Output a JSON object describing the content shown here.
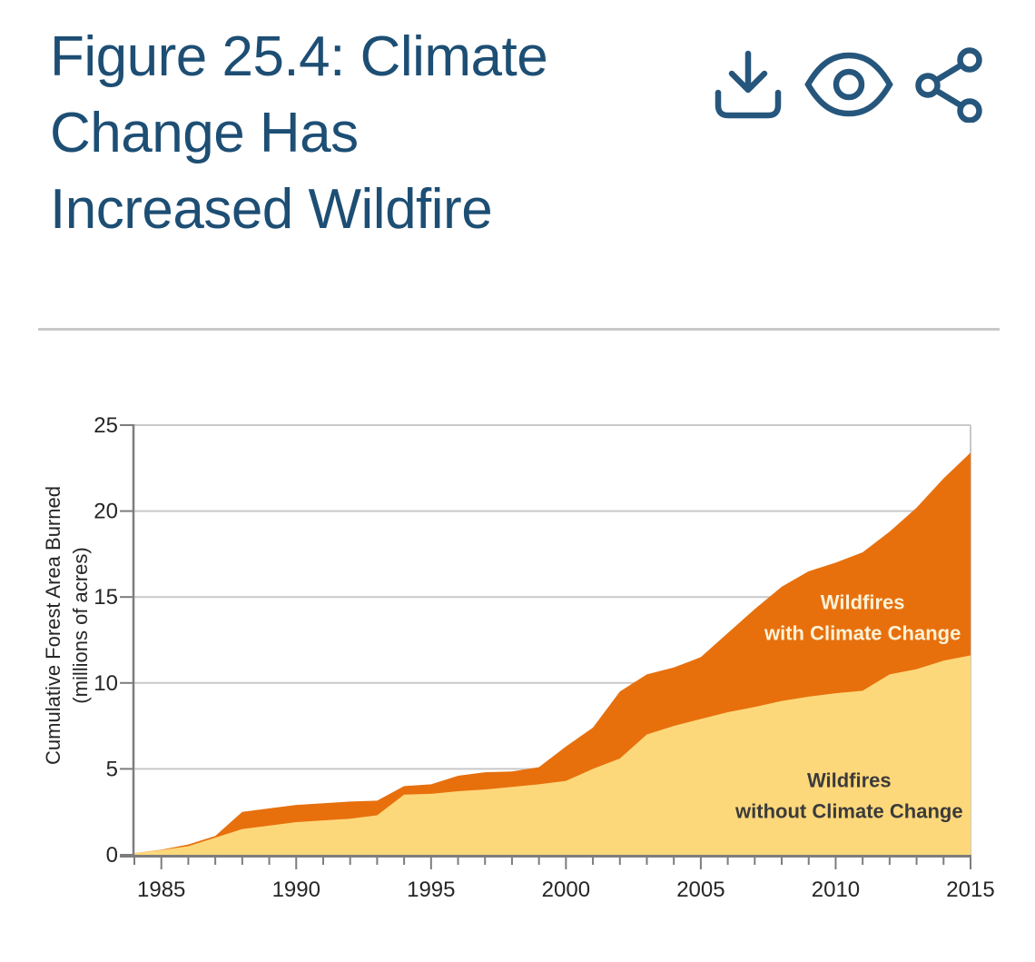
{
  "header": {
    "title": "Figure 25.4: Climate Change Has Increased Wildfire",
    "title_lines": [
      "Figure 25.4: Climate",
      "Change Has",
      "Increased Wildfire"
    ],
    "actions": [
      {
        "label": "Download",
        "icon": "download-icon"
      },
      {
        "label": "View",
        "icon": "eye-icon"
      },
      {
        "label": "Share",
        "icon": "share-icon"
      }
    ]
  },
  "colors": {
    "title_text": "#1d4e74",
    "icon_stroke": "#26567c",
    "divider": "#c9c9c9",
    "axis": "#7d7d7d",
    "grid": "#c9c9c9",
    "tick_text": "#262626",
    "with_climate_change_fill": "#e7700d",
    "without_climate_change_fill": "#fdd87b",
    "with_label_text": "#fbf2d7",
    "without_label_text": "#3b3b3b"
  },
  "chart_data": {
    "type": "area",
    "title": "",
    "xlabel": "",
    "ylabel": "Cumulative Forest Area Burned (millions of acres)",
    "ylabel_lines": [
      "Cumulative Forest Area Burned",
      "(millions of acres)"
    ],
    "xlim": [
      1984,
      2015
    ],
    "ylim": [
      0,
      25
    ],
    "yticks": [
      0,
      5,
      10,
      15,
      20,
      25
    ],
    "ytick_labels": [
      "0",
      "5",
      "10",
      "15",
      "20",
      "25"
    ],
    "xticks_major": [
      1985,
      1990,
      1995,
      2000,
      2005,
      2010,
      2015
    ],
    "xtick_labels": [
      "1985",
      "1990",
      "1995",
      "2000",
      "2005",
      "2010",
      "2015"
    ],
    "grid": "horizontal",
    "legend_position": "in-plot annotations",
    "x": [
      1984,
      1985,
      1986,
      1987,
      1988,
      1989,
      1990,
      1991,
      1992,
      1993,
      1994,
      1995,
      1996,
      1997,
      1998,
      1999,
      2000,
      2001,
      2002,
      2003,
      2004,
      2005,
      2006,
      2007,
      2008,
      2009,
      2010,
      2011,
      2012,
      2013,
      2014,
      2015
    ],
    "series": [
      {
        "name": "Wildfires with Climate Change",
        "fill_key": "with_climate_change_fill",
        "values": [
          0.1,
          0.3,
          0.6,
          1.1,
          2.5,
          2.7,
          2.9,
          3.0,
          3.1,
          3.15,
          4.0,
          4.1,
          4.6,
          4.8,
          4.85,
          5.1,
          6.3,
          7.4,
          9.5,
          10.5,
          10.9,
          11.5,
          12.9,
          14.3,
          15.6,
          16.5,
          17.0,
          17.6,
          18.8,
          20.2,
          21.9,
          23.4
        ]
      },
      {
        "name": "Wildfires without Climate Change",
        "fill_key": "without_climate_change_fill",
        "values": [
          0.1,
          0.28,
          0.5,
          1.0,
          1.5,
          1.7,
          1.9,
          2.0,
          2.1,
          2.3,
          3.5,
          3.55,
          3.7,
          3.8,
          3.95,
          4.1,
          4.3,
          5.0,
          5.6,
          7.0,
          7.5,
          7.9,
          8.3,
          8.6,
          8.95,
          9.2,
          9.4,
          9.55,
          10.5,
          10.8,
          11.3,
          11.6
        ]
      }
    ],
    "annotations": [
      {
        "name": "label-wildfires-with-climate-change",
        "lines": [
          "Wildfires",
          "with Climate Change"
        ],
        "x": 2011,
        "y": 14.3,
        "color_key": "with_label_text"
      },
      {
        "name": "label-wildfires-without-climate-change",
        "lines": [
          "Wildfires",
          "without Climate Change"
        ],
        "x": 2010.5,
        "y": 3.95,
        "color_key": "without_label_text"
      }
    ]
  }
}
